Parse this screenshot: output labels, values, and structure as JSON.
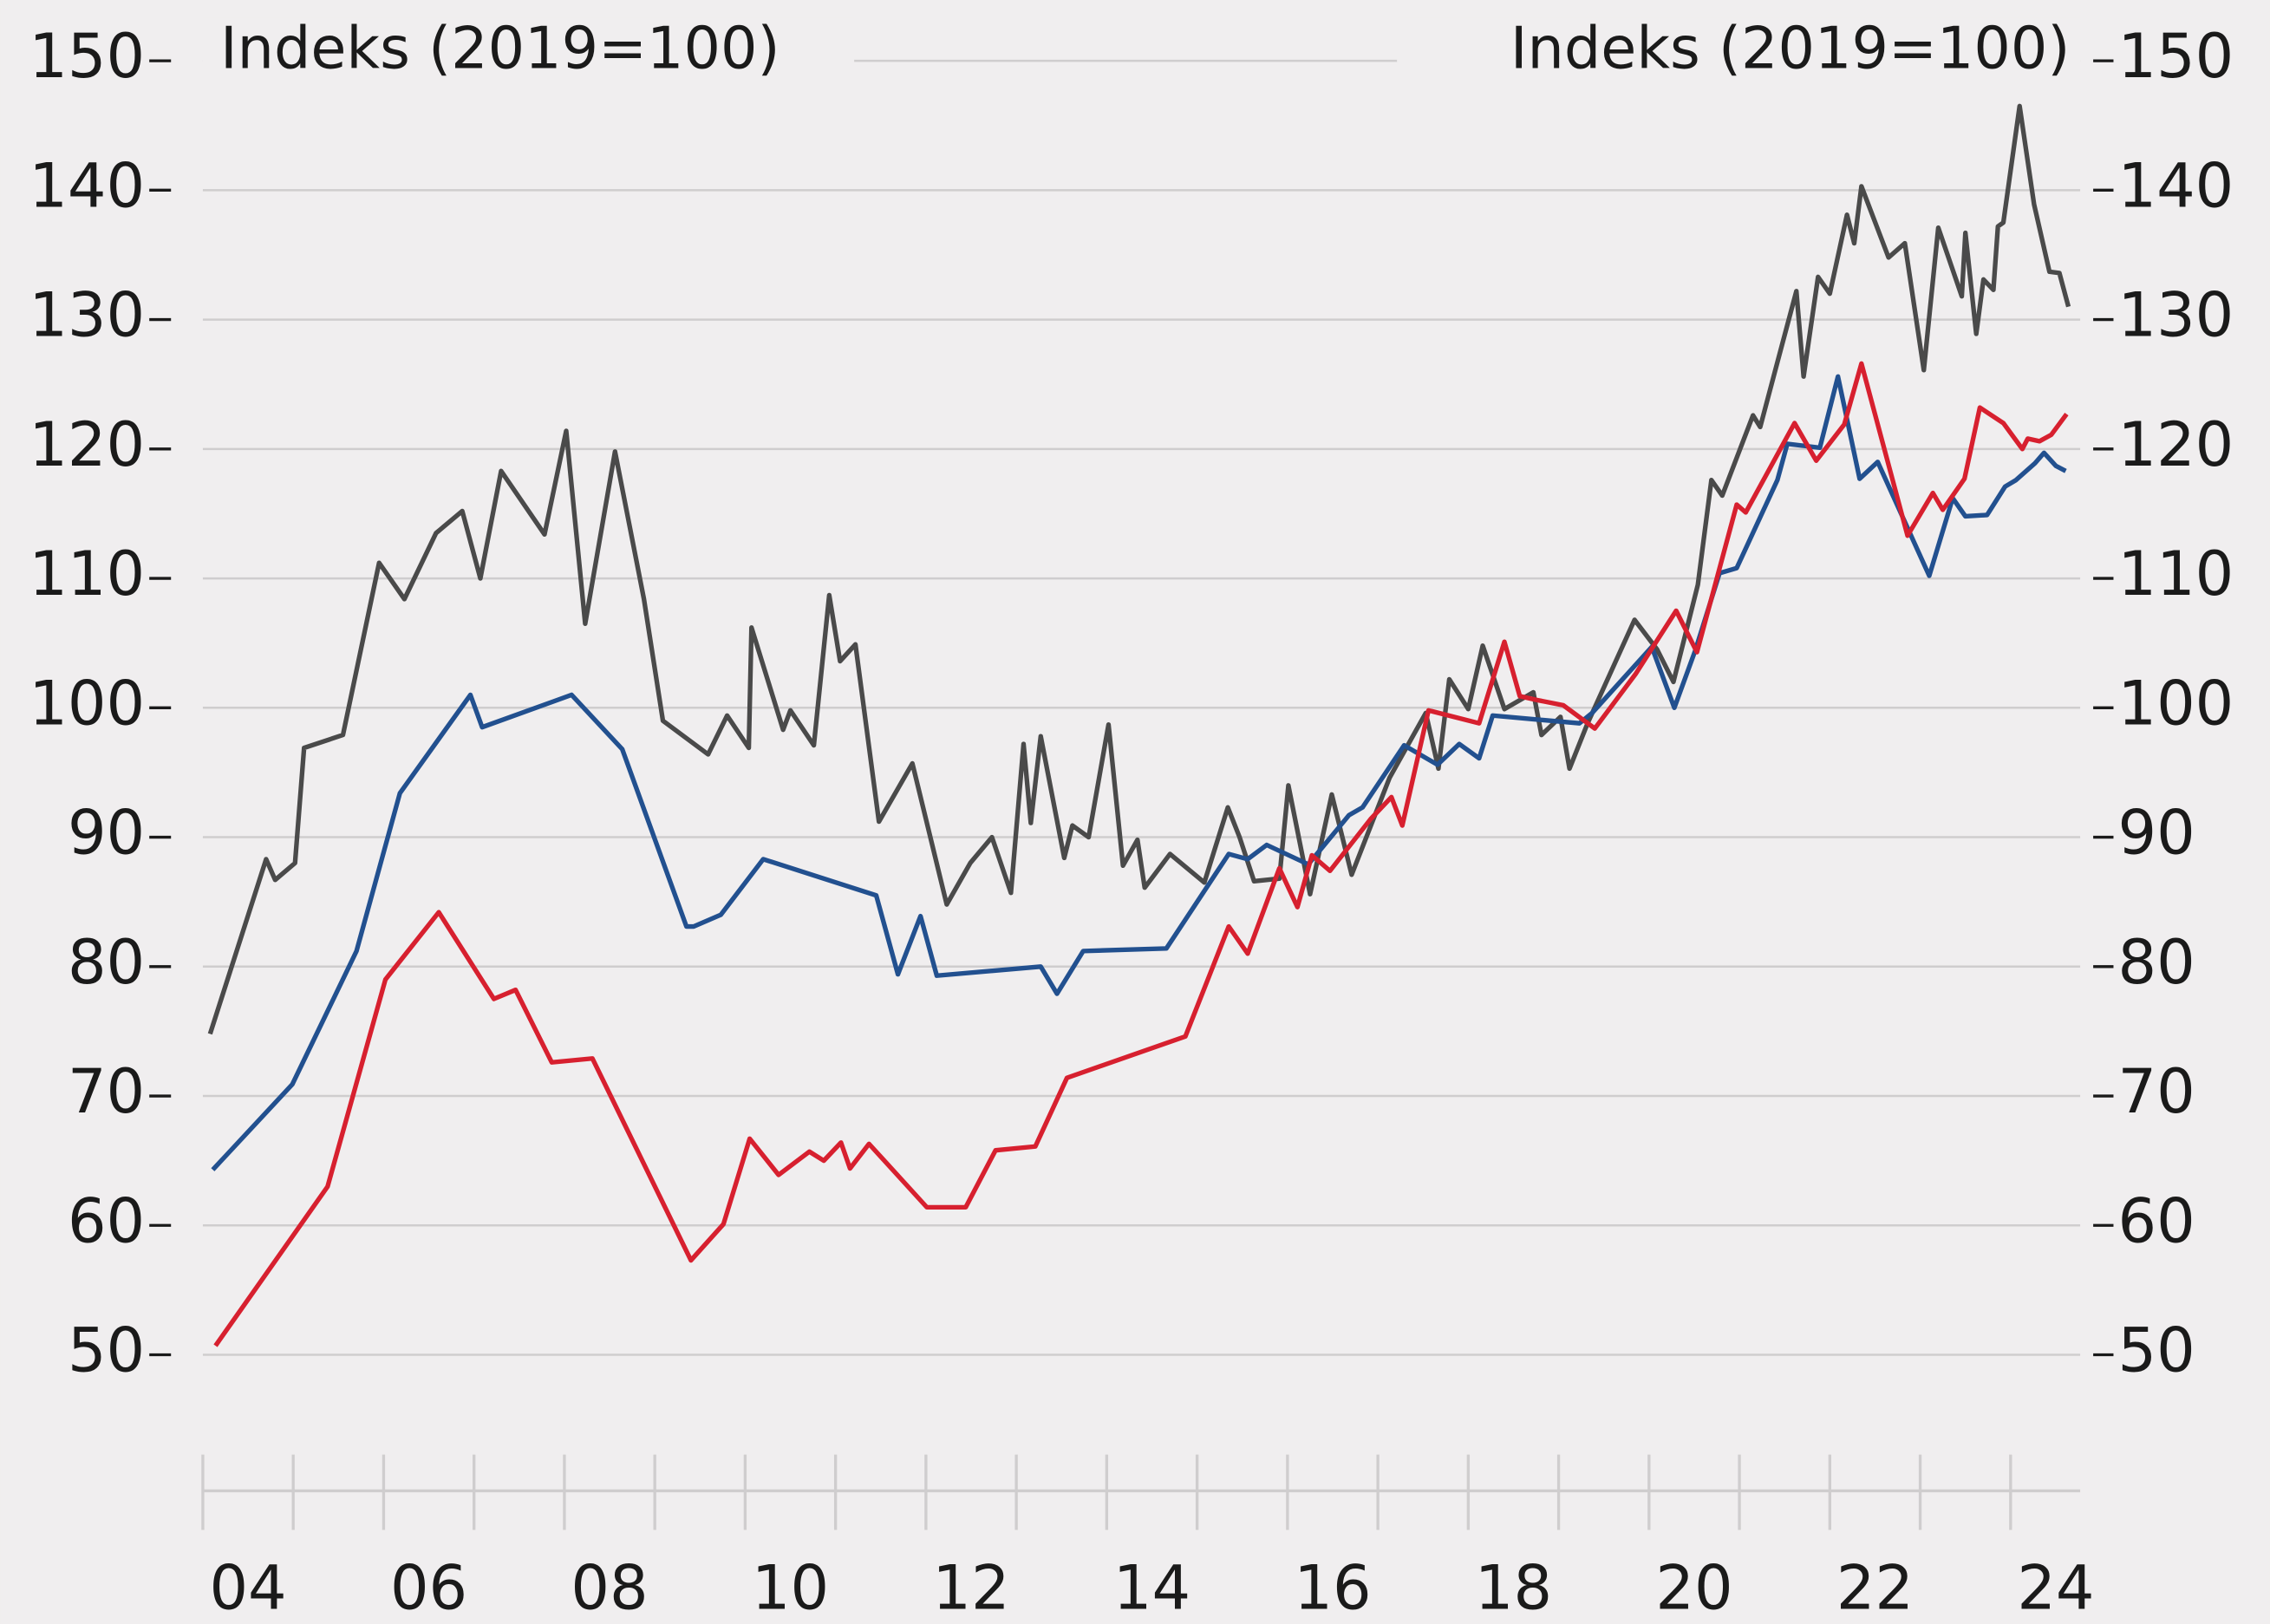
{
  "chart_data": {
    "type": "line",
    "ylabel": "Indeks (2019=100)",
    "y2label": "Indeks (2019=100)",
    "xlim": [
      2004,
      2024.77
    ],
    "xticks": [
      {
        "value": 2004.5,
        "label": "04"
      },
      {
        "value": 2006.5,
        "label": "06"
      },
      {
        "value": 2008.5,
        "label": "08"
      },
      {
        "value": 2010.5,
        "label": "10"
      },
      {
        "value": 2012.5,
        "label": "12"
      },
      {
        "value": 2014.5,
        "label": "14"
      },
      {
        "value": 2016.5,
        "label": "16"
      },
      {
        "value": 2018.5,
        "label": "18"
      },
      {
        "value": 2020.5,
        "label": "20"
      },
      {
        "value": 2022.5,
        "label": "22"
      },
      {
        "value": 2024.5,
        "label": "24"
      }
    ],
    "xtick_marks": [
      2004,
      2005,
      2006,
      2007,
      2008,
      2009,
      2010,
      2011,
      2012,
      2013,
      2014,
      2015,
      2016,
      2017,
      2018,
      2019,
      2020,
      2021,
      2022,
      2023,
      2024
    ],
    "ylim": [
      50,
      150
    ],
    "yticks": [
      50,
      60,
      70,
      80,
      90,
      100,
      110,
      120,
      130,
      140,
      150
    ],
    "y2lim": [
      50,
      150
    ],
    "y2ticks": [
      50,
      60,
      70,
      80,
      90,
      100,
      110,
      120,
      130,
      140,
      150
    ],
    "grid": true,
    "series": [
      {
        "color": "#4a4a4a",
        "x": [
          2004.08,
          2004.7,
          2004.8,
          2005.02,
          2005.12,
          2005.55,
          2005.95,
          2006.23,
          2006.58,
          2006.87,
          2007.07,
          2007.3,
          2007.78,
          2008.02,
          2008.23,
          2008.56,
          2008.88,
          2009.09,
          2009.59,
          2009.8,
          2010.04,
          2010.07,
          2010.42,
          2010.5,
          2010.76,
          2010.93,
          2011.05,
          2011.22,
          2011.48,
          2011.85,
          2012.23,
          2012.49,
          2012.73,
          2012.94,
          2013.08,
          2013.16,
          2013.27,
          2013.53,
          2013.62,
          2013.8,
          2014.02,
          2014.18,
          2014.34,
          2014.42,
          2014.7,
          2015.08,
          2015.34,
          2015.47,
          2015.63,
          2015.91,
          2016.01,
          2016.25,
          2016.49,
          2016.71,
          2017.13,
          2017.53,
          2017.67,
          2017.79,
          2018.0,
          2018.16,
          2018.4,
          2018.72,
          2018.81,
          2019.02,
          2019.12,
          2019.32,
          2019.84,
          2020.09,
          2020.27,
          2020.54,
          2020.69,
          2020.81,
          2021.15,
          2021.23,
          2021.42,
          2021.63,
          2021.71,
          2021.87,
          2022.0,
          2022.19,
          2022.27,
          2022.35,
          2022.65,
          2022.83,
          2023.04,
          2023.2,
          2023.46,
          2023.5,
          2023.62,
          2023.7,
          2023.81,
          2023.86,
          2023.92,
          2024.1,
          2024.26,
          2024.43,
          2024.54,
          2024.64
        ],
        "values": [
          74.8,
          88.3,
          86.7,
          88.0,
          96.9,
          97.9,
          111.2,
          108.4,
          113.5,
          115.2,
          110.0,
          118.3,
          113.4,
          121.4,
          106.5,
          119.8,
          108.4,
          99.0,
          96.4,
          99.4,
          96.9,
          106.2,
          98.3,
          99.8,
          97.1,
          108.7,
          103.6,
          104.9,
          91.2,
          95.7,
          84.8,
          88.0,
          90.0,
          85.7,
          97.2,
          91.1,
          97.8,
          88.4,
          90.9,
          90.0,
          98.7,
          87.8,
          89.8,
          86.1,
          88.7,
          86.5,
          92.3,
          90.0,
          86.6,
          86.8,
          94.0,
          85.6,
          93.3,
          87.1,
          94.6,
          99.6,
          95.3,
          102.2,
          99.9,
          104.8,
          99.9,
          101.2,
          97.9,
          99.3,
          95.3,
          98.8,
          106.8,
          104.5,
          102.0,
          109.5,
          117.6,
          116.4,
          122.6,
          121.7,
          126.7,
          132.2,
          125.6,
          133.3,
          132.0,
          138.1,
          135.9,
          140.3,
          134.8,
          135.9,
          126.1,
          137.1,
          131.8,
          136.7,
          128.9,
          133.1,
          132.3,
          137.2,
          137.5,
          146.5,
          138.9,
          133.7,
          133.6,
          131.0
        ]
      },
      {
        "color": "#22508f",
        "x": [
          2004.11,
          2004.99,
          2005.7,
          2006.18,
          2006.96,
          2007.09,
          2008.08,
          2008.64,
          2009.35,
          2009.43,
          2009.73,
          2010.2,
          2011.45,
          2011.69,
          2011.94,
          2012.12,
          2013.27,
          2013.45,
          2013.74,
          2014.66,
          2015.35,
          2015.56,
          2015.77,
          2016.23,
          2016.68,
          2016.83,
          2017.29,
          2017.66,
          2017.9,
          2018.12,
          2018.27,
          2019.23,
          2019.37,
          2020.03,
          2020.28,
          2020.51,
          2020.78,
          2020.97,
          2021.42,
          2021.53,
          2021.89,
          2022.09,
          2022.33,
          2022.53,
          2023.1,
          2023.36,
          2023.5,
          2023.74,
          2023.94,
          2024.06,
          2024.27,
          2024.37,
          2024.5,
          2024.61
        ],
        "values": [
          64.3,
          70.9,
          81.2,
          93.4,
          101.0,
          98.5,
          101.0,
          96.8,
          83.1,
          83.1,
          84.0,
          88.3,
          85.5,
          79.4,
          83.9,
          79.3,
          80.0,
          77.9,
          81.2,
          81.4,
          88.7,
          88.3,
          89.4,
          87.9,
          91.7,
          92.3,
          97.1,
          95.6,
          97.2,
          96.1,
          99.4,
          98.8,
          99.6,
          104.7,
          100.0,
          104.4,
          110.4,
          110.8,
          117.6,
          120.4,
          120.1,
          125.6,
          117.7,
          119.0,
          110.2,
          116.2,
          114.8,
          114.9,
          117.1,
          117.6,
          118.9,
          119.7,
          118.7,
          118.3
        ]
      },
      {
        "color": "#d7202f",
        "x": [
          2004.14,
          2005.38,
          2006.02,
          2006.61,
          2007.22,
          2007.46,
          2007.86,
          2008.31,
          2009.4,
          2009.76,
          2010.05,
          2010.37,
          2010.71,
          2010.87,
          2011.06,
          2011.16,
          2011.37,
          2012.01,
          2012.44,
          2012.77,
          2013.21,
          2013.56,
          2014.87,
          2015.35,
          2015.56,
          2015.91,
          2016.11,
          2016.27,
          2016.47,
          2016.92,
          2017.15,
          2017.27,
          2017.56,
          2018.12,
          2018.4,
          2018.57,
          2018.76,
          2019.05,
          2019.4,
          2019.85,
          2020.3,
          2020.53,
          2020.97,
          2021.07,
          2021.61,
          2021.85,
          2022.16,
          2022.35,
          2022.86,
          2023.14,
          2023.25,
          2023.49,
          2023.66,
          2023.92,
          2024.13,
          2024.19,
          2024.32,
          2024.45,
          2024.62
        ],
        "values": [
          50.7,
          63.0,
          79.0,
          84.2,
          77.5,
          78.2,
          72.6,
          72.9,
          57.3,
          60.1,
          66.7,
          63.9,
          65.7,
          65.0,
          66.4,
          64.4,
          66.3,
          61.4,
          61.4,
          65.8,
          66.1,
          71.4,
          74.6,
          83.1,
          81.0,
          87.6,
          84.6,
          88.6,
          87.4,
          91.4,
          93.1,
          90.9,
          99.8,
          98.8,
          105.1,
          100.9,
          100.6,
          100.2,
          98.4,
          102.6,
          107.5,
          104.3,
          115.7,
          115.1,
          122.0,
          119.1,
          121.9,
          126.6,
          113.3,
          116.6,
          115.3,
          117.7,
          123.2,
          122.0,
          120.0,
          120.8,
          120.6,
          121.1,
          122.7
        ]
      }
    ]
  }
}
